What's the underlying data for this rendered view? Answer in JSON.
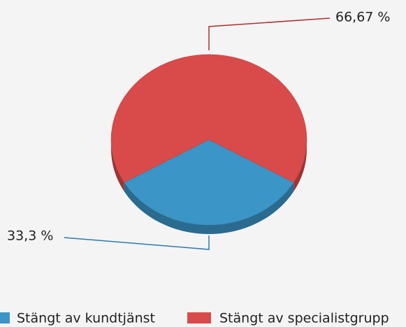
{
  "chart_data": {
    "type": "pie",
    "series": [
      {
        "name": "Stängt av kundtjänst",
        "color": "#3b95c6",
        "values": [
          33.3
        ],
        "value_labels": [
          "33,3 %"
        ]
      },
      {
        "name": "Stängt av specialistgrupp",
        "color": "#d94a4a",
        "values": [
          66.67
        ],
        "value_labels": [
          "66,67 %"
        ]
      }
    ],
    "legend": "bottom"
  }
}
